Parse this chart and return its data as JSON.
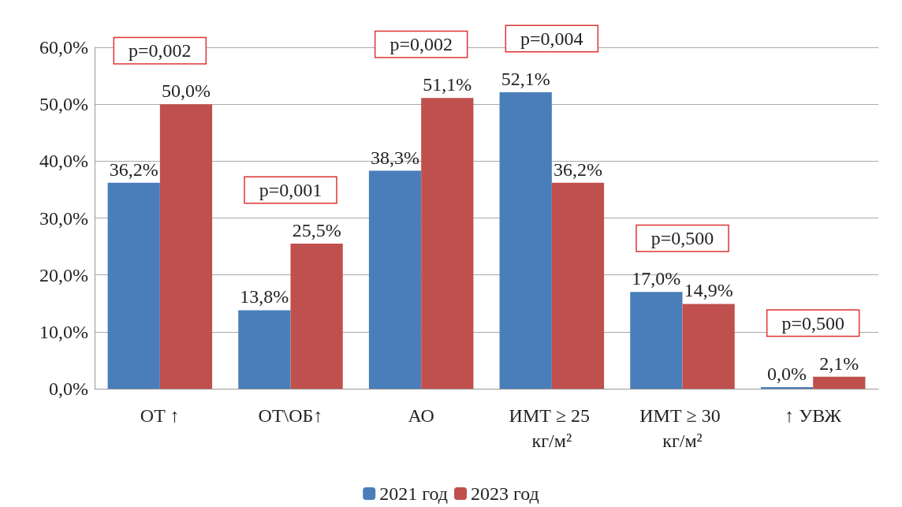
{
  "chart_data": {
    "type": "bar",
    "categories": [
      "ОТ ↑",
      "ОТ\\ОБ↑",
      "АО",
      "ИМТ ≥ 25 кг/м²",
      "ИМТ ≥ 30 кг/м²",
      "↑ УВЖ"
    ],
    "series": [
      {
        "name": "2021 год",
        "color": "#4a7ebb",
        "values": [
          36.2,
          13.8,
          38.3,
          52.1,
          17.0,
          0.0
        ],
        "value_labels": [
          "36,2%",
          "13,8%",
          "38,3%",
          "52,1%",
          "17,0%",
          "0,0%"
        ]
      },
      {
        "name": "2023 год",
        "color": "#c0504d",
        "values": [
          50.0,
          25.5,
          51.1,
          36.2,
          14.9,
          2.1
        ],
        "value_labels": [
          "50,0%",
          "25,5%",
          "51,1%",
          "36,2%",
          "14,9%",
          "2,1%"
        ]
      }
    ],
    "ylim": [
      0,
      60
    ],
    "yticks": [
      {
        "value": 0,
        "label": "0,0%"
      },
      {
        "value": 10,
        "label": "10,0%"
      },
      {
        "value": 20,
        "label": "20,0%"
      },
      {
        "value": 30,
        "label": "30,0%"
      },
      {
        "value": 40,
        "label": "40,0%"
      },
      {
        "value": 50,
        "label": "50,0%"
      },
      {
        "value": 60,
        "label": "60,0%"
      }
    ],
    "annotations": [
      "p=0,002",
      "p=0,001",
      "p=0,002",
      "p=0,004",
      "p=0,500",
      "p=0,500"
    ],
    "grid": "y",
    "legend": "bottom"
  }
}
